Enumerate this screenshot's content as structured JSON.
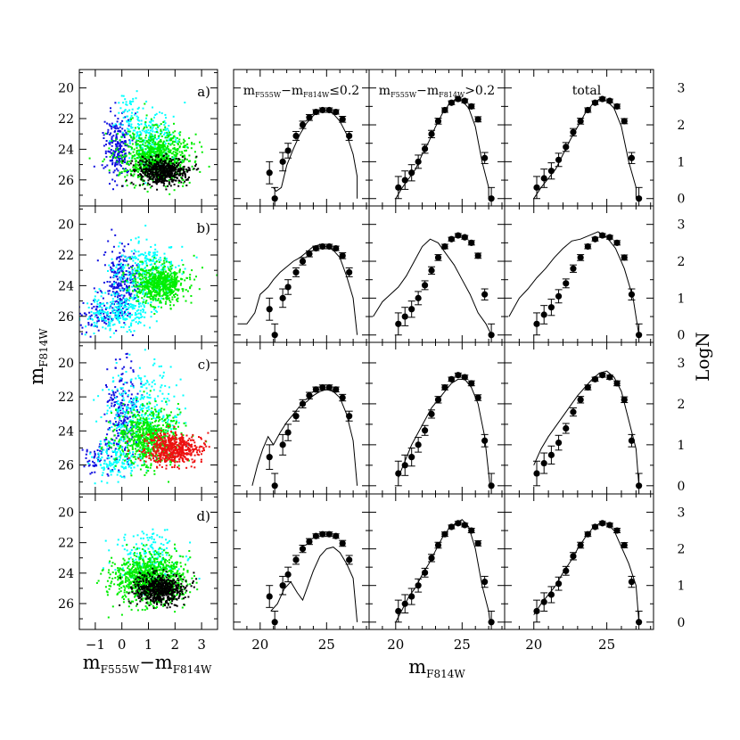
{
  "figure": {
    "cmd_xlabel": "m_F555W − m_F814W",
    "cmd_ylabel": "m_F814W",
    "lf_xlabel": "m_F814W",
    "lf_ylabel": "LogN",
    "column_titles": [
      "m_F555W − m_F814W ≤ 0.2",
      "m_F555W − m_F814W > 0.2",
      "total"
    ],
    "row_labels": [
      "a)",
      "b)",
      "c)",
      "d)"
    ],
    "colors": {
      "blue": "#1010e0",
      "cyan": "#00ffff",
      "green": "#00ee00",
      "red": "#ee1111",
      "black": "#000000"
    }
  },
  "chart_data": [
    {
      "type": "scatter",
      "panel": "color-magnitude diagrams (rows a-d)",
      "xlabel": "m_F555W − m_F814W",
      "ylabel": "m_F814W",
      "xlim": [
        -1.6,
        3.6
      ],
      "ylim": [
        27.7,
        18.8
      ],
      "xticks": [
        -1,
        0,
        1,
        2,
        3
      ],
      "yticks": [
        20,
        22,
        24,
        26
      ],
      "rows": [
        {
          "label": "a)",
          "series": [
            {
              "color": "blue",
              "groups": [
                {
                  "n": 230,
                  "cx": -0.2,
                  "cy": 23.8,
                  "sx": 0.25,
                  "sy": 1.1
                }
              ]
            },
            {
              "color": "cyan",
              "groups": [
                {
                  "n": 230,
                  "cx": 1.1,
                  "cy": 23.2,
                  "sx": 0.55,
                  "sy": 0.9
                },
                {
                  "n": 50,
                  "cx": 0.3,
                  "cy": 21.7,
                  "sx": 0.2,
                  "sy": 0.6
                }
              ]
            },
            {
              "color": "green",
              "groups": [
                {
                  "n": 800,
                  "cx": 1.2,
                  "cy": 24.4,
                  "sx": 0.65,
                  "sy": 0.85
                }
              ]
            },
            {
              "color": "black",
              "groups": [
                {
                  "n": 550,
                  "cx": 1.5,
                  "cy": 25.4,
                  "sx": 0.45,
                  "sy": 0.45
                }
              ]
            }
          ]
        },
        {
          "label": "b)",
          "series": [
            {
              "color": "blue",
              "groups": [
                {
                  "n": 260,
                  "cx": -0.1,
                  "cy": 23.9,
                  "sx": 0.3,
                  "sy": 1.2
                },
                {
                  "n": 70,
                  "cx": -1.0,
                  "cy": 25.9,
                  "sx": 0.35,
                  "sy": 0.6
                }
              ]
            },
            {
              "color": "cyan",
              "groups": [
                {
                  "n": 300,
                  "cx": 0.8,
                  "cy": 23.1,
                  "sx": 0.6,
                  "sy": 1.0
                },
                {
                  "n": 250,
                  "cx": -0.2,
                  "cy": 25.7,
                  "sx": 0.6,
                  "sy": 0.65
                }
              ]
            },
            {
              "color": "green",
              "groups": [
                {
                  "n": 650,
                  "cx": 1.4,
                  "cy": 23.8,
                  "sx": 0.5,
                  "sy": 0.6
                }
              ]
            }
          ]
        },
        {
          "label": "c)",
          "series": [
            {
              "color": "blue",
              "groups": [
                {
                  "n": 220,
                  "cx": 0.0,
                  "cy": 22.8,
                  "sx": 0.3,
                  "sy": 1.4
                },
                {
                  "n": 60,
                  "cx": -0.9,
                  "cy": 25.6,
                  "sx": 0.35,
                  "sy": 0.5
                }
              ]
            },
            {
              "color": "cyan",
              "groups": [
                {
                  "n": 350,
                  "cx": 0.7,
                  "cy": 23.0,
                  "sx": 0.7,
                  "sy": 1.3
                },
                {
                  "n": 150,
                  "cx": -0.3,
                  "cy": 25.6,
                  "sx": 0.5,
                  "sy": 0.5
                }
              ]
            },
            {
              "color": "green",
              "groups": [
                {
                  "n": 650,
                  "cx": 1.0,
                  "cy": 24.3,
                  "sx": 0.6,
                  "sy": 0.8
                }
              ]
            },
            {
              "color": "red",
              "groups": [
                {
                  "n": 550,
                  "cx": 1.9,
                  "cy": 25.0,
                  "sx": 0.55,
                  "sy": 0.45
                }
              ]
            }
          ]
        },
        {
          "label": "d)",
          "series": [
            {
              "color": "cyan",
              "groups": [
                {
                  "n": 200,
                  "cx": 0.9,
                  "cy": 23.1,
                  "sx": 0.6,
                  "sy": 1.0
                }
              ]
            },
            {
              "color": "green",
              "groups": [
                {
                  "n": 950,
                  "cx": 1.0,
                  "cy": 24.3,
                  "sx": 0.65,
                  "sy": 0.8
                }
              ]
            },
            {
              "color": "black",
              "groups": [
                {
                  "n": 600,
                  "cx": 1.4,
                  "cy": 25.0,
                  "sx": 0.45,
                  "sy": 0.5
                }
              ]
            }
          ]
        }
      ]
    },
    {
      "type": "line",
      "panel": "luminosity functions (columns: blue, red, total)",
      "xlabel": "m_F814W",
      "ylabel": "LogN",
      "xlim": [
        18,
        28.2
      ],
      "ylim": [
        -0.2,
        3.5
      ],
      "xticks": [
        20,
        25
      ],
      "yticks": [
        0,
        1,
        2,
        3
      ],
      "observed": [
        {
          "column": "m_F555W − m_F814W ≤ 0.2",
          "x": [
            20.7,
            21.1,
            21.7,
            22.1,
            22.7,
            23.2,
            23.7,
            24.2,
            24.7,
            25.2,
            25.7,
            26.2,
            26.7
          ],
          "y": [
            0.7,
            0.0,
            1.0,
            1.3,
            1.7,
            2.0,
            2.2,
            2.35,
            2.4,
            2.4,
            2.35,
            2.15,
            1.7
          ],
          "err": [
            0.3,
            0.3,
            0.25,
            0.2,
            0.12,
            0.1,
            0.08,
            0.06,
            0.06,
            0.06,
            0.06,
            0.08,
            0.12
          ]
        },
        {
          "column": "m_F555W − m_F814W > 0.2",
          "x": [
            20.2,
            20.7,
            21.2,
            21.7,
            22.2,
            22.7,
            23.2,
            23.7,
            24.2,
            24.7,
            25.2,
            25.7,
            26.2,
            26.7,
            27.2
          ],
          "y": [
            0.3,
            0.5,
            0.7,
            1.0,
            1.35,
            1.75,
            2.1,
            2.4,
            2.6,
            2.7,
            2.65,
            2.5,
            2.15,
            1.1,
            0.0
          ],
          "err": [
            0.3,
            0.25,
            0.22,
            0.18,
            0.12,
            0.1,
            0.08,
            0.06,
            0.05,
            0.05,
            0.05,
            0.06,
            0.07,
            0.15,
            0.3
          ]
        },
        {
          "column": "total",
          "x": [
            20.2,
            20.7,
            21.2,
            21.7,
            22.2,
            22.7,
            23.2,
            23.7,
            24.2,
            24.7,
            25.2,
            25.7,
            26.2,
            26.7,
            27.2
          ],
          "y": [
            0.3,
            0.55,
            0.75,
            1.05,
            1.4,
            1.8,
            2.1,
            2.4,
            2.6,
            2.7,
            2.65,
            2.5,
            2.1,
            1.1,
            0.0
          ],
          "err": [
            0.3,
            0.25,
            0.22,
            0.18,
            0.12,
            0.1,
            0.08,
            0.06,
            0.05,
            0.05,
            0.05,
            0.06,
            0.07,
            0.15,
            0.3
          ]
        }
      ],
      "models": [
        {
          "row": "a)",
          "curves": [
            {
              "x": [
                21.0,
                21.2,
                21.6,
                22.0,
                22.5,
                23.0,
                23.5,
                24.0,
                24.5,
                25.0,
                25.5,
                26.0,
                26.5,
                27.0,
                27.3,
                27.3
              ],
              "y": [
                0.3,
                0.2,
                0.3,
                0.9,
                1.35,
                1.75,
                2.05,
                2.25,
                2.4,
                2.4,
                2.3,
                2.1,
                1.75,
                1.2,
                0.6,
                0.0
              ]
            },
            {
              "x": [
                20.0,
                20.5,
                21.0,
                21.5,
                22.0,
                22.5,
                23.0,
                23.5,
                24.0,
                24.5,
                25.0,
                25.5,
                26.0,
                26.5,
                27.0,
                27.0
              ],
              "y": [
                0.0,
                0.3,
                0.55,
                0.8,
                1.2,
                1.55,
                1.95,
                2.3,
                2.55,
                2.7,
                2.65,
                2.45,
                1.95,
                1.0,
                0.3,
                0.0
              ]
            },
            {
              "x": [
                20.0,
                20.5,
                21.0,
                21.5,
                22.0,
                22.5,
                23.0,
                23.5,
                24.0,
                24.5,
                25.0,
                25.5,
                26.0,
                26.5,
                27.0,
                27.0
              ],
              "y": [
                0.0,
                0.3,
                0.55,
                0.8,
                1.2,
                1.6,
                1.95,
                2.3,
                2.55,
                2.7,
                2.65,
                2.45,
                1.95,
                1.0,
                0.3,
                0.0
              ]
            }
          ]
        },
        {
          "row": "b)",
          "curves": [
            {
              "x": [
                18.3,
                19.0,
                19.6,
                20.0,
                20.6,
                21.0,
                21.5,
                22.0,
                22.5,
                23.0,
                23.5,
                24.0,
                24.5,
                25.0,
                25.5,
                26.0,
                26.5,
                27.0,
                27.3
              ],
              "y": [
                0.3,
                0.3,
                0.6,
                1.1,
                1.3,
                1.5,
                1.7,
                1.85,
                2.0,
                2.1,
                2.25,
                2.4,
                2.45,
                2.4,
                2.3,
                2.1,
                1.6,
                1.0,
                0.0
              ]
            },
            {
              "x": [
                18.3,
                19.0,
                19.6,
                20.2,
                20.8,
                21.4,
                22.0,
                22.6,
                23.2,
                23.8,
                24.4,
                25.0,
                25.6,
                26.2,
                26.8,
                27.2
              ],
              "y": [
                0.5,
                0.9,
                1.1,
                1.3,
                1.6,
                2.0,
                2.4,
                2.6,
                2.5,
                2.2,
                1.9,
                1.5,
                1.1,
                0.6,
                0.3,
                0.0
              ]
            },
            {
              "x": [
                18.3,
                19.0,
                19.6,
                20.2,
                20.8,
                21.4,
                22.0,
                22.6,
                23.2,
                23.8,
                24.4,
                25.0,
                25.6,
                26.2,
                26.8,
                27.2
              ],
              "y": [
                0.5,
                1.0,
                1.25,
                1.55,
                1.8,
                2.1,
                2.35,
                2.55,
                2.6,
                2.7,
                2.8,
                2.65,
                2.35,
                1.8,
                1.0,
                0.0
              ]
            }
          ]
        },
        {
          "row": "c)",
          "curves": [
            {
              "x": [
                19.4,
                19.8,
                20.2,
                20.6,
                21.0,
                21.5,
                22.0,
                22.5,
                23.0,
                23.5,
                24.0,
                24.5,
                25.0,
                25.5,
                26.0,
                26.5,
                27.0,
                27.3
              ],
              "y": [
                0.0,
                0.5,
                0.9,
                1.2,
                1.0,
                1.3,
                1.55,
                1.75,
                1.95,
                2.05,
                2.2,
                2.3,
                2.35,
                2.3,
                2.15,
                1.75,
                1.1,
                0.0
              ]
            },
            {
              "x": [
                20.2,
                20.7,
                21.2,
                21.7,
                22.2,
                22.7,
                23.2,
                23.7,
                24.2,
                24.7,
                25.2,
                25.7,
                26.2,
                26.7,
                27.1
              ],
              "y": [
                0.2,
                0.6,
                1.0,
                1.3,
                1.6,
                1.9,
                2.1,
                2.3,
                2.5,
                2.6,
                2.6,
                2.4,
                2.0,
                1.2,
                0.0
              ]
            },
            {
              "x": [
                20.0,
                20.5,
                21.0,
                21.5,
                22.0,
                22.5,
                23.0,
                23.5,
                24.0,
                24.5,
                25.0,
                25.5,
                26.0,
                26.5,
                27.0,
                27.2
              ],
              "y": [
                0.5,
                0.9,
                1.2,
                1.45,
                1.7,
                1.95,
                2.2,
                2.4,
                2.6,
                2.75,
                2.8,
                2.65,
                2.3,
                1.6,
                0.9,
                0.0
              ]
            }
          ]
        },
        {
          "row": "d)",
          "curves": [
            {
              "x": [
                20.8,
                21.3,
                21.8,
                22.3,
                22.8,
                23.2,
                23.6,
                24.0,
                24.5,
                25.0,
                25.5,
                26.0,
                26.5,
                27.0,
                27.3
              ],
              "y": [
                0.3,
                0.5,
                0.9,
                1.1,
                0.8,
                0.6,
                1.0,
                1.4,
                1.8,
                2.0,
                2.05,
                1.9,
                1.6,
                1.2,
                0.0
              ]
            },
            {
              "x": [
                20.0,
                20.5,
                21.0,
                21.5,
                22.0,
                22.5,
                23.0,
                23.5,
                24.0,
                24.5,
                25.0,
                25.5,
                26.0,
                26.5,
                27.0,
                27.1
              ],
              "y": [
                0.0,
                0.35,
                0.7,
                0.95,
                1.3,
                1.6,
                1.95,
                2.3,
                2.55,
                2.7,
                2.8,
                2.6,
                2.0,
                1.0,
                0.3,
                0.0
              ]
            },
            {
              "x": [
                20.0,
                20.5,
                21.0,
                21.5,
                22.0,
                22.5,
                23.0,
                23.5,
                24.0,
                24.5,
                25.0,
                25.5,
                26.0,
                26.5,
                27.0,
                27.2
              ],
              "y": [
                0.2,
                0.5,
                0.75,
                1.0,
                1.35,
                1.65,
                2.0,
                2.3,
                2.55,
                2.7,
                2.7,
                2.5,
                2.05,
                1.6,
                1.0,
                0.0
              ]
            }
          ]
        }
      ]
    }
  ]
}
